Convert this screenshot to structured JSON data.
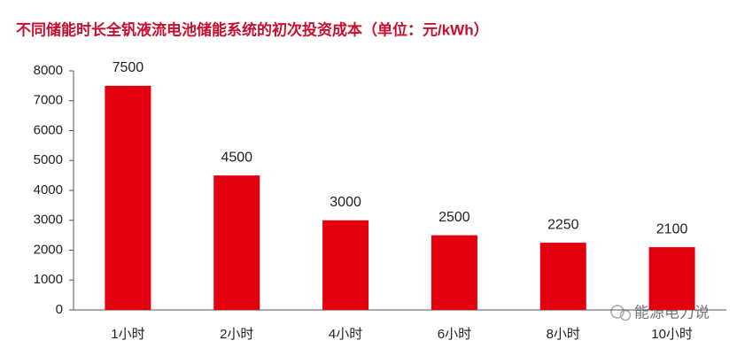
{
  "chart_data": {
    "type": "bar",
    "title": "不同储能时长全钒液流电池储能系统的初次投资成本（单位：元/kWh）",
    "categories": [
      "1小时",
      "2小时",
      "4小时",
      "6小时",
      "8小时",
      "10小时"
    ],
    "values": [
      7500,
      4500,
      3000,
      2500,
      2250,
      2100
    ],
    "color": "#e2000f",
    "ylim": [
      0,
      8000
    ],
    "yticks": [
      0,
      1000,
      2000,
      3000,
      4000,
      5000,
      6000,
      7000,
      8000
    ],
    "grid": false,
    "watermark": "能源电力说"
  }
}
